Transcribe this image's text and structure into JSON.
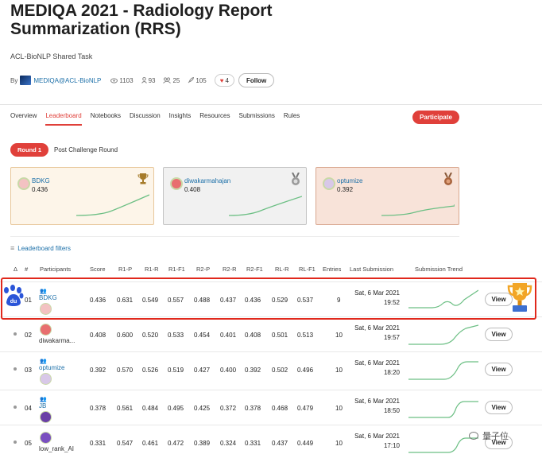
{
  "page": {
    "title": "MEDIQA 2021 - Radiology Report Summarization (RRS)",
    "subtitle": "ACL-BioNLP Shared Task"
  },
  "meta": {
    "by_label": "By",
    "organizer": "MEDIQA@ACL-BioNLP",
    "views": "1103",
    "participants": "93",
    "teams": "25",
    "submissions": "105",
    "likes": "4",
    "follow_label": "Follow"
  },
  "nav": {
    "tabs": [
      "Overview",
      "Leaderboard",
      "Notebooks",
      "Discussion",
      "Insights",
      "Resources",
      "Submissions",
      "Rules"
    ],
    "active_tab": "Leaderboard",
    "participate_label": "Participate"
  },
  "rounds": {
    "active": "Round 1",
    "other": "Post Challenge Round"
  },
  "podium": [
    {
      "name": "BDKG",
      "score": "0.436",
      "medal": "gold"
    },
    {
      "name": "diwakarmahajan",
      "score": "0.408",
      "medal": "silver"
    },
    {
      "name": "optumize",
      "score": "0.392",
      "medal": "bronze"
    }
  ],
  "filters_label": "Leaderboard filters",
  "table": {
    "columns": [
      "Δ",
      "#",
      "Participants",
      "Score",
      "R1-P",
      "R1-R",
      "R1-F1",
      "R2-P",
      "R2-R",
      "R2-F1",
      "RL-R",
      "RL-F1",
      "Entries",
      "Last Submission",
      "Submission Trend"
    ],
    "rows": [
      {
        "rank": "01",
        "name": "BDKG",
        "score": "0.436",
        "r1p": "0.631",
        "r1r": "0.549",
        "r1f1": "0.557",
        "r2p": "0.488",
        "r2r": "0.437",
        "r2f1": "0.436",
        "rlr": "0.529",
        "rlf1": "0.537",
        "entries": "9",
        "date": "Sat, 6 Mar 2021",
        "time": "19:52",
        "view": "View"
      },
      {
        "rank": "02",
        "name": "diwakarma...",
        "score": "0.408",
        "r1p": "0.600",
        "r1r": "0.520",
        "r1f1": "0.533",
        "r2p": "0.454",
        "r2r": "0.401",
        "r2f1": "0.408",
        "rlr": "0.501",
        "rlf1": "0.513",
        "entries": "10",
        "date": "Sat, 6 Mar 2021",
        "time": "19:57",
        "view": "View"
      },
      {
        "rank": "03",
        "name": "optumize",
        "score": "0.392",
        "r1p": "0.570",
        "r1r": "0.526",
        "r1f1": "0.519",
        "r2p": "0.427",
        "r2r": "0.400",
        "r2f1": "0.392",
        "rlr": "0.502",
        "rlf1": "0.496",
        "entries": "10",
        "date": "Sat, 6 Mar 2021",
        "time": "18:20",
        "view": "View"
      },
      {
        "rank": "04",
        "name": "JB",
        "score": "0.378",
        "r1p": "0.561",
        "r1r": "0.484",
        "r1f1": "0.495",
        "r2p": "0.425",
        "r2r": "0.372",
        "r2f1": "0.378",
        "rlr": "0.468",
        "rlf1": "0.479",
        "entries": "10",
        "date": "Sat, 6 Mar 2021",
        "time": "18:50",
        "view": "View"
      },
      {
        "rank": "05",
        "name": "low_rank_AI",
        "score": "0.331",
        "r1p": "0.547",
        "r1r": "0.461",
        "r1f1": "0.472",
        "r2p": "0.389",
        "r2r": "0.324",
        "r2f1": "0.331",
        "rlr": "0.437",
        "rlf1": "0.449",
        "entries": "10",
        "date": "Sat, 6 Mar 2021",
        "time": "17:10",
        "view": "View"
      }
    ]
  },
  "watermark": "量子位",
  "colors": {
    "accent": "#e0403a",
    "link": "#1b6fa8",
    "highlight": "#e0281c"
  }
}
